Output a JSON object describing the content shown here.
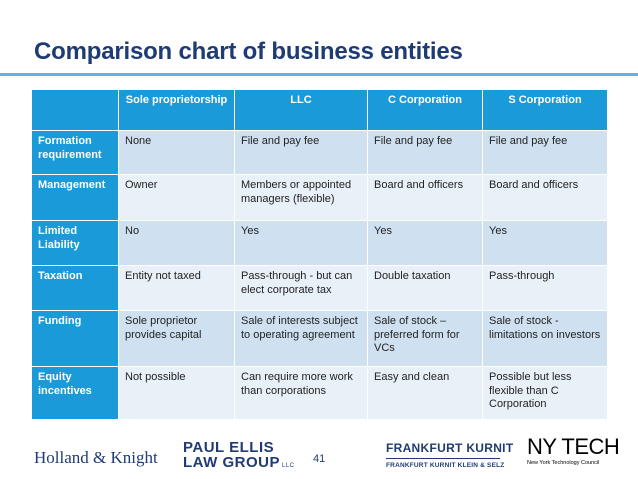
{
  "title": "Comparison chart of business entities",
  "table": {
    "headers": [
      "",
      "Sole proprietorship",
      "LLC",
      "C Corporation",
      "S Corporation"
    ],
    "rows": [
      {
        "label": "Formation requirement",
        "cells": [
          "None",
          "File and pay fee",
          "File and pay fee",
          "File and pay fee"
        ]
      },
      {
        "label": "Management",
        "cells": [
          "Owner",
          "Members or appointed managers (flexible)",
          "Board and officers",
          "Board and officers"
        ]
      },
      {
        "label": "Limited Liability",
        "cells": [
          "No",
          "Yes",
          "Yes",
          "Yes"
        ]
      },
      {
        "label": "Taxation",
        "cells": [
          "Entity not taxed",
          "Pass-through - but can elect corporate tax",
          "Double taxation",
          "Pass-through"
        ]
      },
      {
        "label": "Funding",
        "cells": [
          "Sole proprietor provides capital",
          "Sale of interests subject to operating agreement",
          "Sale of stock – preferred form for VCs",
          "Sale of stock - limitations on investors"
        ]
      },
      {
        "label": "Equity incentives",
        "cells": [
          "Not possible",
          "Can require more work than corporations",
          "Easy and clean",
          "Possible but less flexible than C Corporation"
        ]
      }
    ]
  },
  "footer": {
    "logo_holland_knight": "Holland & Knight",
    "logo_paul_ellis_line1": "PAUL ELLIS",
    "logo_paul_ellis_line2": "LAW GROUP",
    "logo_paul_ellis_suffix": "LLC",
    "page_number": "41",
    "logo_frankfurt_title": "FRANKFURT KURNIT",
    "logo_frankfurt_sub": "FRANKFURT KURNIT KLEIN & SELZ",
    "logo_nytech_title": "NY TECH",
    "logo_nytech_sub": "New York Technology Council"
  },
  "colors": {
    "header_blue": "#1a9ad8",
    "title_navy": "#1f3b73",
    "row_dark": "#cfe1f1",
    "row_light": "#e8f0f8"
  }
}
